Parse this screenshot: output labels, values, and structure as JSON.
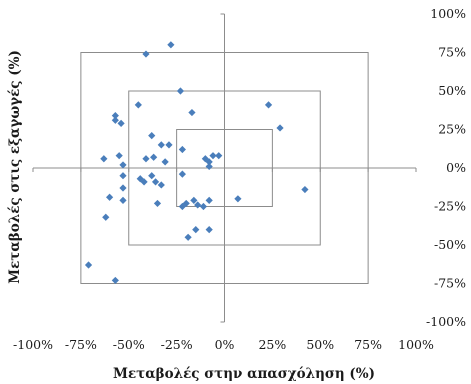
{
  "chart_data": {
    "type": "scatter",
    "title": "",
    "xlabel": "Μεταβολές στην απασχόληση (%)",
    "ylabel": "Μεταβολές στις εξαγωγές (%)",
    "xlim": [
      -100,
      100
    ],
    "ylim": [
      -100,
      100
    ],
    "x_ticks": [
      "-100%",
      "-75%",
      "-50%",
      "-25%",
      "0%",
      "25%",
      "50%",
      "75%",
      "100%"
    ],
    "y_ticks": [
      "100%",
      "75%",
      "50%",
      "25%",
      "0%",
      "-25%",
      "-50%",
      "-75%",
      "-100%"
    ],
    "reference_boxes": [
      {
        "x": [
          -25,
          25
        ],
        "y": [
          -25,
          25
        ]
      },
      {
        "x": [
          -50,
          50
        ],
        "y": [
          -50,
          50
        ]
      },
      {
        "x": [
          -75,
          75
        ],
        "y": [
          -75,
          75
        ]
      }
    ],
    "marker_color": "#4a7ebb",
    "box_color": "#8c8c8c",
    "axis_color": "#8c8c8c",
    "series": [
      {
        "points": [
          [
            -28,
            80
          ],
          [
            -41,
            74
          ],
          [
            -23,
            50
          ],
          [
            -45,
            41
          ],
          [
            -17,
            36
          ],
          [
            23,
            41
          ],
          [
            29,
            26
          ],
          [
            -57,
            34
          ],
          [
            -57,
            31
          ],
          [
            -54,
            29
          ],
          [
            -38,
            21
          ],
          [
            -22,
            12
          ],
          [
            -29,
            15
          ],
          [
            -33,
            15
          ],
          [
            -63,
            6
          ],
          [
            -55,
            8
          ],
          [
            -41,
            6
          ],
          [
            -37,
            7
          ],
          [
            -31,
            4
          ],
          [
            -10,
            6
          ],
          [
            -8,
            4
          ],
          [
            -6,
            8
          ],
          [
            -3,
            8
          ],
          [
            -8,
            1
          ],
          [
            -53,
            2
          ],
          [
            -53,
            -5
          ],
          [
            -38,
            -5
          ],
          [
            -36,
            -9
          ],
          [
            -44,
            -7
          ],
          [
            -42,
            -9
          ],
          [
            -33,
            -11
          ],
          [
            -22,
            -4
          ],
          [
            -53,
            -13
          ],
          [
            -60,
            -19
          ],
          [
            -53,
            -21
          ],
          [
            -35,
            -23
          ],
          [
            -20,
            -23
          ],
          [
            -16,
            -21
          ],
          [
            -14,
            -24
          ],
          [
            -22,
            -25
          ],
          [
            -11,
            -25
          ],
          [
            -8,
            -21
          ],
          [
            7,
            -20
          ],
          [
            42,
            -14
          ],
          [
            -62,
            -32
          ],
          [
            -15,
            -40
          ],
          [
            -8,
            -40
          ],
          [
            -19,
            -45
          ],
          [
            -71,
            -63
          ],
          [
            -57,
            -73
          ]
        ]
      }
    ]
  }
}
